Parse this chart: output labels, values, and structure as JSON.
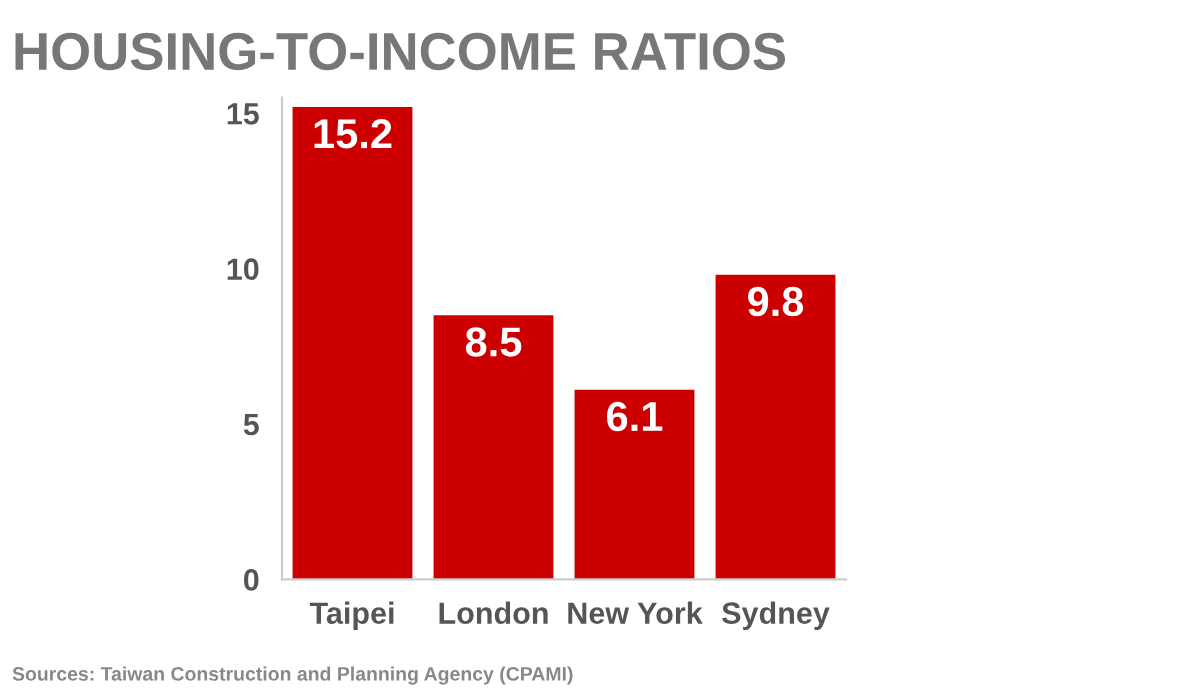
{
  "chart_data": {
    "type": "bar",
    "title": "HOUSING-TO-INCOME RATIOS",
    "categories": [
      "Taipei",
      "London",
      "New York",
      "Sydney"
    ],
    "values": [
      15.2,
      8.5,
      6.1,
      9.8
    ],
    "color": "#cc0000",
    "ylim": [
      0,
      15.5
    ],
    "yticks": [
      0,
      5,
      10,
      15
    ],
    "grid": false,
    "data_labels": true,
    "annotations": [
      "Sources: Taiwan Construction and Planning Agency (CPAMI)"
    ]
  }
}
